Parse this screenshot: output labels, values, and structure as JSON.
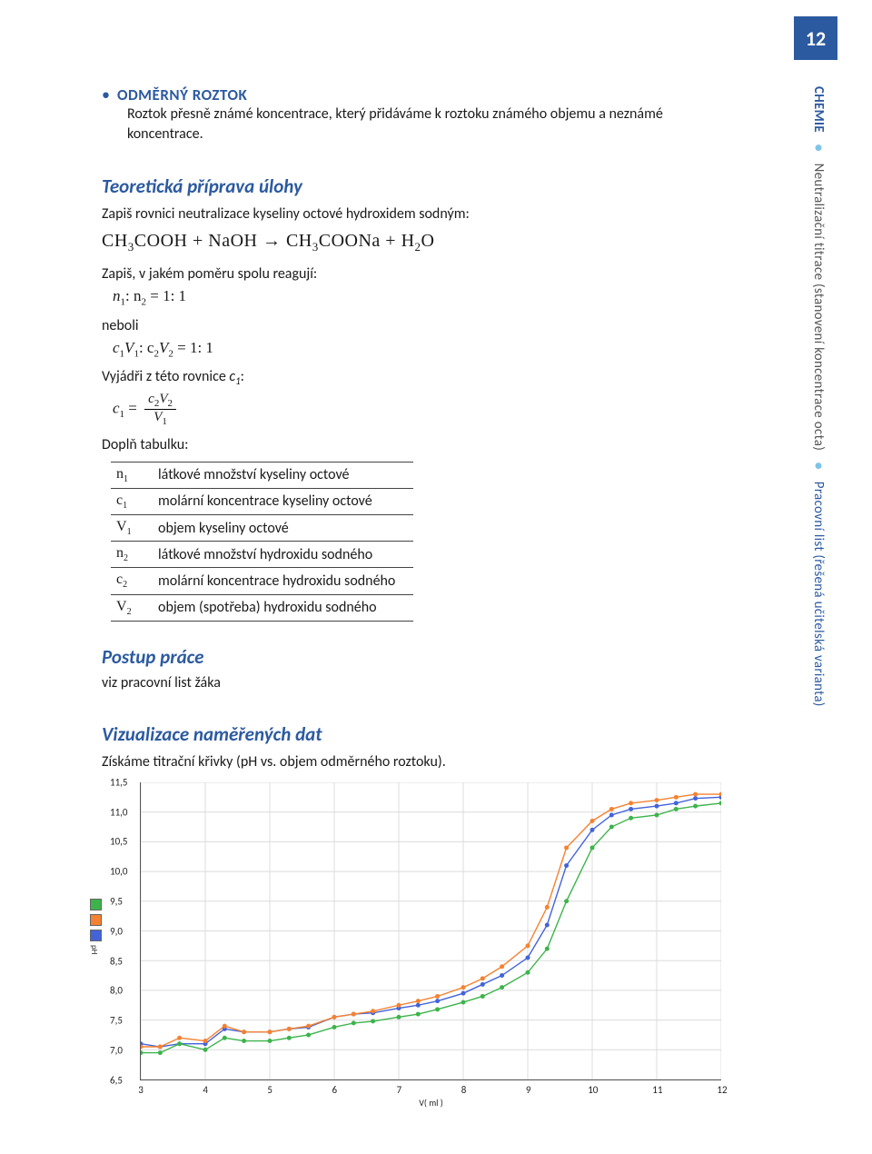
{
  "page_number": "12",
  "sidebar": {
    "chem": "CHEMIE",
    "dot": "●",
    "subtitle": "Neutralizační titrace (stanovení koncentrace octa)",
    "note": "Pracovní list (řešená učitelská varianta)"
  },
  "bullet": {
    "dot": "•",
    "title": "ODMĚRNÝ ROZTOK",
    "body": "Roztok přesně známé koncentrace, který přidáváme k roztoku známého objemu a neznámé koncentrace."
  },
  "sec1": {
    "heading": "Teoretická příprava úlohy",
    "line1": "Zapiš rovnici neutralizace kyseliny octové hydroxidem sodným:",
    "eq_lhs1": "CH",
    "eq_sub3a": "3",
    "eq_lhs2": "COOH   +   NaOH   →      CH",
    "eq_sub3b": "3",
    "eq_rhs1": "COONa + H",
    "eq_sub2": "2",
    "eq_rhs2": "O",
    "line2": "Zapiš, v jakém poměru spolu reagují:",
    "ratio1_a": "n",
    "ratio1_b": ": n",
    "ratio1_c": " = 1: 1",
    "neboli": "neboli",
    "ratio2_a": "c",
    "ratio2_b": "V",
    "ratio2_c": ": c",
    "ratio2_d": "V",
    "ratio2_e": " = 1: 1",
    "line3_a": "Vyjádři z této rovnice ",
    "line3_b": "c",
    "line3_c": ":",
    "c1eq_lhs": "c",
    "c1eq_eq": " = ",
    "frac_num_a": "c",
    "frac_num_b": "V",
    "frac_den": "V",
    "line4": "Doplň tabulku:"
  },
  "table": {
    "rows": [
      {
        "sym": "n",
        "sub": "1",
        "desc": "látkové množství kyseliny octové"
      },
      {
        "sym": "c",
        "sub": "1",
        "desc": "molární koncentrace kyseliny octové"
      },
      {
        "sym": "V",
        "sub": "1",
        "desc": "objem kyseliny octové"
      },
      {
        "sym": "n",
        "sub": "2",
        "desc": "látkové množství hydroxidu sodného"
      },
      {
        "sym": "c",
        "sub": "2",
        "desc": "molární koncentrace hydroxidu sodného"
      },
      {
        "sym": "V",
        "sub": "2",
        "desc": "objem (spotřeba) hydroxidu sodného"
      }
    ]
  },
  "sec2": {
    "heading": "Postup práce",
    "note": "viz pracovní list žáka"
  },
  "sec3": {
    "heading": "Vizualizace naměřených dat",
    "caption_a": "Získáme titrační křivky (pH vs. objem odměrného roztoku).",
    "xlabel": "V( ml )",
    "ylabel": "pH"
  },
  "chart": {
    "type": "line",
    "xlim": [
      3,
      12
    ],
    "ylim": [
      6.5,
      11.5
    ],
    "yticks": [
      6.5,
      7.0,
      7.5,
      8.0,
      8.5,
      9.0,
      9.5,
      10.0,
      10.5,
      11.0,
      11.5
    ],
    "xticks": [
      3,
      4,
      5,
      6,
      7,
      8,
      9,
      10,
      11,
      12
    ],
    "ytick_labels": [
      "6,5",
      "7,0",
      "7,5",
      "8,0",
      "8,5",
      "9,0",
      "9,5",
      "10,0",
      "10,5",
      "11,0",
      "11,5"
    ],
    "xtick_labels": [
      "3",
      "4",
      "5",
      "6",
      "7",
      "8",
      "9",
      "10",
      "11",
      "12"
    ],
    "grid_color": "#dcdcdc",
    "axis_color": "#555555",
    "background": "#ffffff",
    "font_size": 11,
    "line_width": 1.4,
    "marker_size": 2.5,
    "legend_swatches": [
      "#3cb44b",
      "#f58231",
      "#4363d8"
    ],
    "series": [
      {
        "color": "#4363d8",
        "x": [
          3,
          3.3,
          3.6,
          4,
          4.3,
          4.6,
          5,
          5.3,
          5.6,
          6,
          6.3,
          6.6,
          7,
          7.3,
          7.6,
          8,
          8.3,
          8.6,
          9,
          9.3,
          9.6,
          10,
          10.3,
          10.6,
          11,
          11.3,
          11.6,
          12
        ],
        "y": [
          7.1,
          7.05,
          7.1,
          7.1,
          7.35,
          7.3,
          7.3,
          7.35,
          7.38,
          7.55,
          7.6,
          7.62,
          7.7,
          7.75,
          7.82,
          7.95,
          8.1,
          8.25,
          8.55,
          9.1,
          10.1,
          10.7,
          10.95,
          11.05,
          11.1,
          11.15,
          11.23,
          11.25
        ]
      },
      {
        "color": "#3cb44b",
        "x": [
          3,
          3.3,
          3.6,
          4,
          4.3,
          4.6,
          5,
          5.3,
          5.6,
          6,
          6.3,
          6.6,
          7,
          7.3,
          7.6,
          8,
          8.3,
          8.6,
          9,
          9.3,
          9.6,
          10,
          10.3,
          10.6,
          11,
          11.3,
          11.6,
          12
        ],
        "y": [
          6.95,
          6.95,
          7.1,
          7.0,
          7.2,
          7.15,
          7.15,
          7.2,
          7.25,
          7.38,
          7.45,
          7.48,
          7.55,
          7.6,
          7.68,
          7.8,
          7.9,
          8.05,
          8.3,
          8.7,
          9.5,
          10.4,
          10.75,
          10.9,
          10.95,
          11.05,
          11.1,
          11.15
        ]
      },
      {
        "color": "#f58231",
        "x": [
          3,
          3.3,
          3.6,
          4,
          4.3,
          4.6,
          5,
          5.3,
          5.6,
          6,
          6.3,
          6.6,
          7,
          7.3,
          7.6,
          8,
          8.3,
          8.6,
          9,
          9.3,
          9.6,
          10,
          10.3,
          10.6,
          11,
          11.3,
          11.6,
          12
        ],
        "y": [
          7.05,
          7.05,
          7.2,
          7.15,
          7.4,
          7.3,
          7.3,
          7.35,
          7.4,
          7.55,
          7.6,
          7.65,
          7.75,
          7.82,
          7.9,
          8.05,
          8.2,
          8.4,
          8.75,
          9.4,
          10.4,
          10.85,
          11.05,
          11.15,
          11.2,
          11.25,
          11.3,
          11.3
        ]
      }
    ]
  }
}
